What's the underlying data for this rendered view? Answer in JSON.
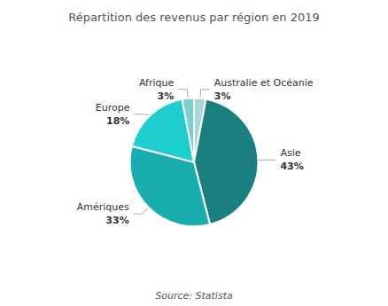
{
  "chart_data": {
    "type": "pie",
    "title": "Répartition des revenus par région en 2019",
    "annotations": [
      "Source: Statista"
    ],
    "categories": [
      "Australie et Océanie",
      "Asie",
      "Amériques",
      "Europe",
      "Afrique"
    ],
    "values": [
      3,
      43,
      33,
      18,
      3
    ],
    "value_labels": [
      "3%",
      "43%",
      "33%",
      "18%",
      "3%"
    ],
    "colors": [
      "#a8d8d8",
      "#1a7f7f",
      "#1aadad",
      "#1ecece",
      "#7dcece"
    ],
    "data_labels": true
  }
}
